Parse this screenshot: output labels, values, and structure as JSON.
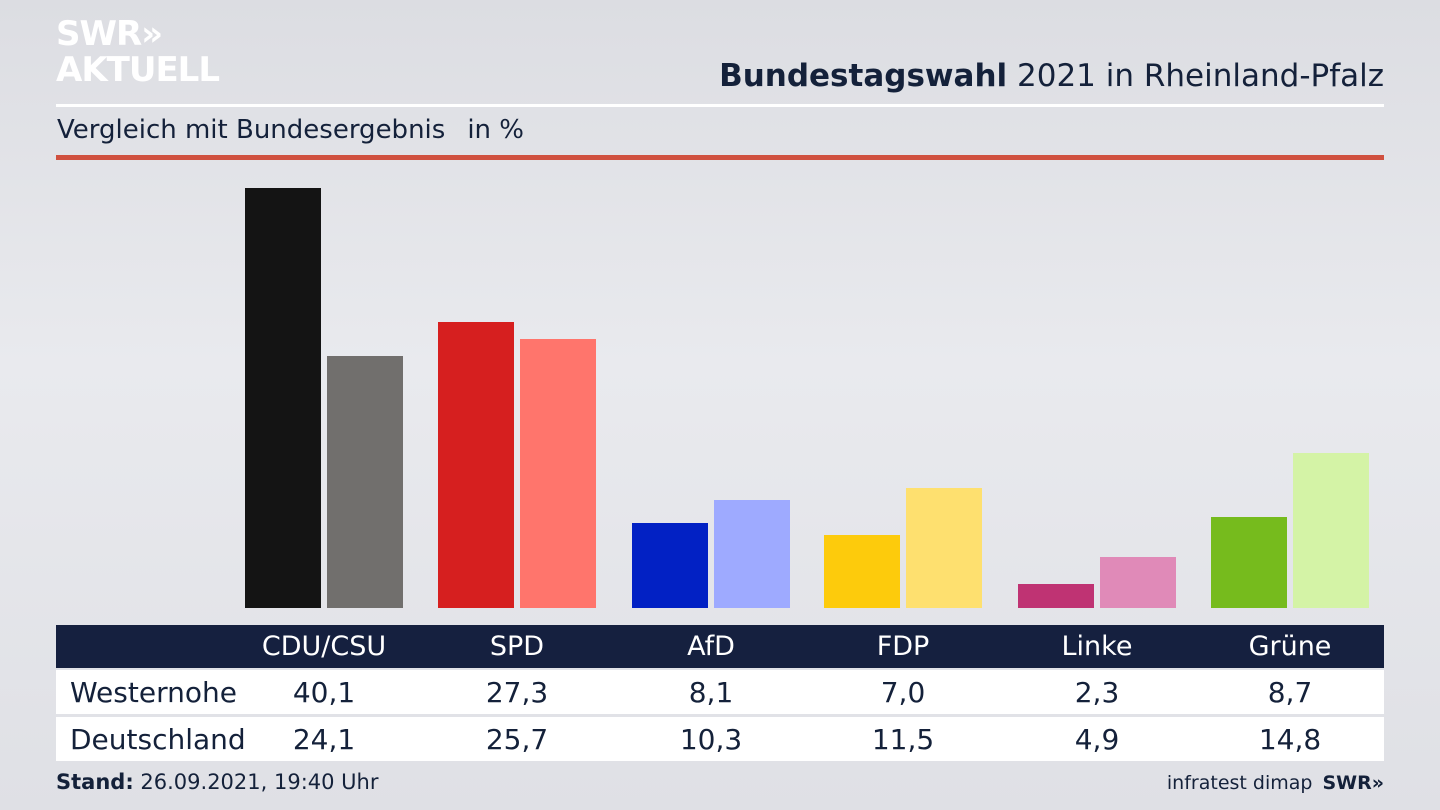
{
  "header": {
    "logo_line1": "SWR»",
    "logo_line2": "AKTUELL",
    "title_bold": "Bundestagswahl",
    "title_rest": " 2021 in Rheinland-Pfalz",
    "subtitle": "Vergleich mit Bundesergebnis",
    "unit": "in %"
  },
  "colors": {
    "header_band": "#15203f",
    "accent_rule": "#d0503f",
    "text": "#14213a"
  },
  "chart_data": {
    "type": "bar",
    "ylim": [
      0,
      40.1
    ],
    "categories": [
      "CDU/CSU",
      "SPD",
      "AfD",
      "FDP",
      "Linke",
      "Grüne"
    ],
    "row_labels": [
      "Westernohe",
      "Deutschland"
    ],
    "series": [
      {
        "name": "Westernohe",
        "values": [
          40.1,
          27.3,
          8.1,
          7.0,
          2.3,
          8.7
        ],
        "labels": [
          "40,1",
          "27,3",
          "8,1",
          "7,0",
          "2,3",
          "8,7"
        ],
        "colors": [
          "#141414",
          "#d61f1f",
          "#0221c4",
          "#fdcb0c",
          "#bf3373",
          "#76bb1d"
        ]
      },
      {
        "name": "Deutschland",
        "values": [
          24.1,
          25.7,
          10.3,
          11.5,
          4.9,
          14.8
        ],
        "labels": [
          "24,1",
          "25,7",
          "10,3",
          "11,5",
          "4,9",
          "14,8"
        ],
        "colors": [
          "#716f6d",
          "#ff756c",
          "#9eaaff",
          "#fee06f",
          "#e08ab8",
          "#d4f3a6"
        ]
      }
    ]
  },
  "footer": {
    "stand_label": "Stand:",
    "stand_value": " 26.09.2021, 19:40 Uhr",
    "source": "infratest dimap",
    "brand": "SWR»"
  }
}
